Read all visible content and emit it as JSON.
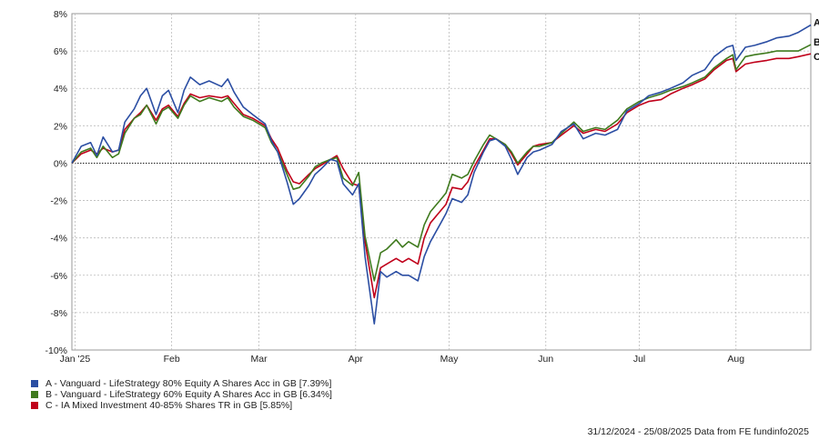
{
  "chart_data": {
    "type": "line",
    "title": "",
    "xlabel": "",
    "ylabel": "",
    "ylim": [
      -10,
      8
    ],
    "yticks": [
      -10,
      -8,
      -6,
      -4,
      -2,
      0,
      2,
      4,
      6,
      8
    ],
    "ytick_labels": [
      "-10%",
      "-8%",
      "-6%",
      "-4%",
      "-2%",
      "0%",
      "2%",
      "4%",
      "6%",
      "8%"
    ],
    "xlim": [
      "2024-12-31",
      "2025-08-25"
    ],
    "xtick_labels": [
      "Jan '25",
      "Feb",
      "Mar",
      "Apr",
      "May",
      "Jun",
      "Jul",
      "Aug"
    ],
    "xtick_dates": [
      "2025-01-01",
      "2025-02-01",
      "2025-03-01",
      "2025-04-01",
      "2025-05-01",
      "2025-06-01",
      "2025-07-01",
      "2025-08-01"
    ],
    "grid": true,
    "legend_position": "bottom-left",
    "series": [
      {
        "name": "A - Vanguard - LifeStrategy 80% Equity A Shares Acc in GB [7.39%]",
        "end_label": "A",
        "color": "#2b4ea3",
        "points": [
          [
            "2024-12-31",
            0.0
          ],
          [
            "2025-01-03",
            0.9
          ],
          [
            "2025-01-06",
            1.1
          ],
          [
            "2025-01-08",
            0.4
          ],
          [
            "2025-01-10",
            1.4
          ],
          [
            "2025-01-13",
            0.6
          ],
          [
            "2025-01-15",
            0.7
          ],
          [
            "2025-01-17",
            2.2
          ],
          [
            "2025-01-20",
            2.9
          ],
          [
            "2025-01-22",
            3.6
          ],
          [
            "2025-01-24",
            4.0
          ],
          [
            "2025-01-27",
            2.6
          ],
          [
            "2025-01-29",
            3.6
          ],
          [
            "2025-01-31",
            3.9
          ],
          [
            "2025-02-03",
            2.7
          ],
          [
            "2025-02-05",
            3.9
          ],
          [
            "2025-02-07",
            4.6
          ],
          [
            "2025-02-10",
            4.2
          ],
          [
            "2025-02-13",
            4.4
          ],
          [
            "2025-02-17",
            4.1
          ],
          [
            "2025-02-19",
            4.5
          ],
          [
            "2025-02-21",
            3.8
          ],
          [
            "2025-02-24",
            3.0
          ],
          [
            "2025-02-27",
            2.6
          ],
          [
            "2025-03-03",
            2.1
          ],
          [
            "2025-03-05",
            1.2
          ],
          [
            "2025-03-07",
            0.6
          ],
          [
            "2025-03-10",
            -1.0
          ],
          [
            "2025-03-12",
            -2.2
          ],
          [
            "2025-03-14",
            -1.9
          ],
          [
            "2025-03-17",
            -1.2
          ],
          [
            "2025-03-19",
            -0.6
          ],
          [
            "2025-03-21",
            -0.3
          ],
          [
            "2025-03-24",
            0.2
          ],
          [
            "2025-03-26",
            0.1
          ],
          [
            "2025-03-28",
            -1.1
          ],
          [
            "2025-03-31",
            -1.7
          ],
          [
            "2025-04-02",
            -1.1
          ],
          [
            "2025-04-04",
            -5.0
          ],
          [
            "2025-04-07",
            -8.6
          ],
          [
            "2025-04-09",
            -5.8
          ],
          [
            "2025-04-11",
            -6.1
          ],
          [
            "2025-04-14",
            -5.8
          ],
          [
            "2025-04-16",
            -6.0
          ],
          [
            "2025-04-18",
            -6.0
          ],
          [
            "2025-04-21",
            -6.3
          ],
          [
            "2025-04-23",
            -5.0
          ],
          [
            "2025-04-25",
            -4.2
          ],
          [
            "2025-04-28",
            -3.3
          ],
          [
            "2025-04-30",
            -2.7
          ],
          [
            "2025-05-02",
            -1.9
          ],
          [
            "2025-05-05",
            -2.1
          ],
          [
            "2025-05-07",
            -1.7
          ],
          [
            "2025-05-09",
            -0.5
          ],
          [
            "2025-05-12",
            0.6
          ],
          [
            "2025-05-14",
            1.2
          ],
          [
            "2025-05-16",
            1.3
          ],
          [
            "2025-05-19",
            0.9
          ],
          [
            "2025-05-21",
            0.2
          ],
          [
            "2025-05-23",
            -0.6
          ],
          [
            "2025-05-26",
            0.3
          ],
          [
            "2025-05-28",
            0.6
          ],
          [
            "2025-05-30",
            0.7
          ],
          [
            "2025-06-03",
            1.0
          ],
          [
            "2025-06-06",
            1.7
          ],
          [
            "2025-06-10",
            2.1
          ],
          [
            "2025-06-13",
            1.3
          ],
          [
            "2025-06-17",
            1.6
          ],
          [
            "2025-06-20",
            1.5
          ],
          [
            "2025-06-24",
            1.8
          ],
          [
            "2025-06-27",
            2.8
          ],
          [
            "2025-07-01",
            3.2
          ],
          [
            "2025-07-04",
            3.6
          ],
          [
            "2025-07-08",
            3.8
          ],
          [
            "2025-07-11",
            4.0
          ],
          [
            "2025-07-15",
            4.3
          ],
          [
            "2025-07-18",
            4.7
          ],
          [
            "2025-07-22",
            5.0
          ],
          [
            "2025-07-25",
            5.7
          ],
          [
            "2025-07-29",
            6.2
          ],
          [
            "2025-07-31",
            6.3
          ],
          [
            "2025-08-01",
            5.5
          ],
          [
            "2025-08-04",
            6.2
          ],
          [
            "2025-08-07",
            6.3
          ],
          [
            "2025-08-11",
            6.5
          ],
          [
            "2025-08-14",
            6.7
          ],
          [
            "2025-08-18",
            6.8
          ],
          [
            "2025-08-21",
            7.0
          ],
          [
            "2025-08-25",
            7.39
          ]
        ]
      },
      {
        "name": "B - Vanguard - LifeStrategy 60% Equity A Shares Acc in GB [6.34%]",
        "end_label": "B",
        "color": "#3f7a1e",
        "points": [
          [
            "2024-12-31",
            0.0
          ],
          [
            "2025-01-03",
            0.6
          ],
          [
            "2025-01-06",
            0.8
          ],
          [
            "2025-01-08",
            0.3
          ],
          [
            "2025-01-10",
            0.9
          ],
          [
            "2025-01-13",
            0.3
          ],
          [
            "2025-01-15",
            0.5
          ],
          [
            "2025-01-17",
            1.6
          ],
          [
            "2025-01-20",
            2.4
          ],
          [
            "2025-01-22",
            2.6
          ],
          [
            "2025-01-24",
            3.1
          ],
          [
            "2025-01-27",
            2.1
          ],
          [
            "2025-01-29",
            2.8
          ],
          [
            "2025-01-31",
            3.0
          ],
          [
            "2025-02-03",
            2.4
          ],
          [
            "2025-02-05",
            3.1
          ],
          [
            "2025-02-07",
            3.6
          ],
          [
            "2025-02-10",
            3.3
          ],
          [
            "2025-02-13",
            3.5
          ],
          [
            "2025-02-17",
            3.3
          ],
          [
            "2025-02-19",
            3.5
          ],
          [
            "2025-02-21",
            3.0
          ],
          [
            "2025-02-24",
            2.5
          ],
          [
            "2025-02-27",
            2.3
          ],
          [
            "2025-03-03",
            1.9
          ],
          [
            "2025-03-05",
            1.1
          ],
          [
            "2025-03-07",
            0.6
          ],
          [
            "2025-03-10",
            -0.6
          ],
          [
            "2025-03-12",
            -1.4
          ],
          [
            "2025-03-14",
            -1.3
          ],
          [
            "2025-03-17",
            -0.7
          ],
          [
            "2025-03-19",
            -0.2
          ],
          [
            "2025-03-21",
            0.0
          ],
          [
            "2025-03-24",
            0.2
          ],
          [
            "2025-03-26",
            0.3
          ],
          [
            "2025-03-28",
            -0.8
          ],
          [
            "2025-03-31",
            -1.2
          ],
          [
            "2025-04-02",
            -0.5
          ],
          [
            "2025-04-04",
            -3.9
          ],
          [
            "2025-04-07",
            -6.3
          ],
          [
            "2025-04-09",
            -4.8
          ],
          [
            "2025-04-11",
            -4.6
          ],
          [
            "2025-04-14",
            -4.1
          ],
          [
            "2025-04-16",
            -4.5
          ],
          [
            "2025-04-18",
            -4.2
          ],
          [
            "2025-04-21",
            -4.5
          ],
          [
            "2025-04-23",
            -3.3
          ],
          [
            "2025-04-25",
            -2.6
          ],
          [
            "2025-04-28",
            -2.0
          ],
          [
            "2025-04-30",
            -1.6
          ],
          [
            "2025-05-02",
            -0.6
          ],
          [
            "2025-05-05",
            -0.8
          ],
          [
            "2025-05-07",
            -0.6
          ],
          [
            "2025-05-09",
            0.1
          ],
          [
            "2025-05-12",
            1.0
          ],
          [
            "2025-05-14",
            1.5
          ],
          [
            "2025-05-16",
            1.3
          ],
          [
            "2025-05-19",
            1.0
          ],
          [
            "2025-05-21",
            0.6
          ],
          [
            "2025-05-23",
            0.0
          ],
          [
            "2025-05-26",
            0.6
          ],
          [
            "2025-05-28",
            0.9
          ],
          [
            "2025-05-30",
            0.9
          ],
          [
            "2025-06-03",
            1.1
          ],
          [
            "2025-06-06",
            1.6
          ],
          [
            "2025-06-10",
            2.2
          ],
          [
            "2025-06-13",
            1.7
          ],
          [
            "2025-06-17",
            1.9
          ],
          [
            "2025-06-20",
            1.8
          ],
          [
            "2025-06-24",
            2.3
          ],
          [
            "2025-06-27",
            2.9
          ],
          [
            "2025-07-01",
            3.3
          ],
          [
            "2025-07-04",
            3.5
          ],
          [
            "2025-07-08",
            3.7
          ],
          [
            "2025-07-11",
            3.9
          ],
          [
            "2025-07-15",
            4.1
          ],
          [
            "2025-07-18",
            4.3
          ],
          [
            "2025-07-22",
            4.6
          ],
          [
            "2025-07-25",
            5.1
          ],
          [
            "2025-07-29",
            5.6
          ],
          [
            "2025-07-31",
            5.8
          ],
          [
            "2025-08-01",
            5.0
          ],
          [
            "2025-08-04",
            5.7
          ],
          [
            "2025-08-07",
            5.8
          ],
          [
            "2025-08-11",
            5.9
          ],
          [
            "2025-08-14",
            6.0
          ],
          [
            "2025-08-18",
            6.0
          ],
          [
            "2025-08-21",
            6.0
          ],
          [
            "2025-08-25",
            6.34
          ]
        ]
      },
      {
        "name": "C - IA Mixed Investment 40-85% Shares TR in GB [5.85%]",
        "end_label": "C",
        "color": "#c0001a",
        "points": [
          [
            "2024-12-31",
            0.0
          ],
          [
            "2025-01-03",
            0.5
          ],
          [
            "2025-01-06",
            0.7
          ],
          [
            "2025-01-08",
            0.5
          ],
          [
            "2025-01-10",
            0.8
          ],
          [
            "2025-01-13",
            0.6
          ],
          [
            "2025-01-15",
            0.7
          ],
          [
            "2025-01-17",
            1.8
          ],
          [
            "2025-01-20",
            2.4
          ],
          [
            "2025-01-22",
            2.7
          ],
          [
            "2025-01-24",
            3.1
          ],
          [
            "2025-01-27",
            2.3
          ],
          [
            "2025-01-29",
            2.9
          ],
          [
            "2025-01-31",
            3.1
          ],
          [
            "2025-02-03",
            2.5
          ],
          [
            "2025-02-05",
            3.2
          ],
          [
            "2025-02-07",
            3.7
          ],
          [
            "2025-02-10",
            3.5
          ],
          [
            "2025-02-13",
            3.6
          ],
          [
            "2025-02-17",
            3.5
          ],
          [
            "2025-02-19",
            3.6
          ],
          [
            "2025-02-21",
            3.2
          ],
          [
            "2025-02-24",
            2.6
          ],
          [
            "2025-02-27",
            2.4
          ],
          [
            "2025-03-03",
            2.0
          ],
          [
            "2025-03-05",
            1.3
          ],
          [
            "2025-03-07",
            0.8
          ],
          [
            "2025-03-10",
            -0.4
          ],
          [
            "2025-03-12",
            -1.0
          ],
          [
            "2025-03-14",
            -1.1
          ],
          [
            "2025-03-17",
            -0.6
          ],
          [
            "2025-03-19",
            -0.3
          ],
          [
            "2025-03-21",
            -0.1
          ],
          [
            "2025-03-24",
            0.2
          ],
          [
            "2025-03-26",
            0.4
          ],
          [
            "2025-03-28",
            -0.3
          ],
          [
            "2025-03-31",
            -1.1
          ],
          [
            "2025-04-02",
            -1.2
          ],
          [
            "2025-04-04",
            -4.2
          ],
          [
            "2025-04-07",
            -7.2
          ],
          [
            "2025-04-09",
            -5.6
          ],
          [
            "2025-04-11",
            -5.4
          ],
          [
            "2025-04-14",
            -5.1
          ],
          [
            "2025-04-16",
            -5.3
          ],
          [
            "2025-04-18",
            -5.1
          ],
          [
            "2025-04-21",
            -5.4
          ],
          [
            "2025-04-23",
            -4.0
          ],
          [
            "2025-04-25",
            -3.2
          ],
          [
            "2025-04-28",
            -2.6
          ],
          [
            "2025-04-30",
            -2.2
          ],
          [
            "2025-05-02",
            -1.3
          ],
          [
            "2025-05-05",
            -1.4
          ],
          [
            "2025-05-07",
            -1.0
          ],
          [
            "2025-05-09",
            -0.2
          ],
          [
            "2025-05-12",
            0.7
          ],
          [
            "2025-05-14",
            1.3
          ],
          [
            "2025-05-16",
            1.3
          ],
          [
            "2025-05-19",
            1.0
          ],
          [
            "2025-05-21",
            0.5
          ],
          [
            "2025-05-23",
            -0.1
          ],
          [
            "2025-05-26",
            0.5
          ],
          [
            "2025-05-28",
            0.9
          ],
          [
            "2025-05-30",
            1.0
          ],
          [
            "2025-06-03",
            1.1
          ],
          [
            "2025-06-06",
            1.5
          ],
          [
            "2025-06-10",
            2.0
          ],
          [
            "2025-06-13",
            1.6
          ],
          [
            "2025-06-17",
            1.8
          ],
          [
            "2025-06-20",
            1.7
          ],
          [
            "2025-06-24",
            2.1
          ],
          [
            "2025-06-27",
            2.7
          ],
          [
            "2025-07-01",
            3.1
          ],
          [
            "2025-07-04",
            3.3
          ],
          [
            "2025-07-08",
            3.4
          ],
          [
            "2025-07-11",
            3.7
          ],
          [
            "2025-07-15",
            4.0
          ],
          [
            "2025-07-18",
            4.2
          ],
          [
            "2025-07-22",
            4.5
          ],
          [
            "2025-07-25",
            5.0
          ],
          [
            "2025-07-29",
            5.5
          ],
          [
            "2025-07-31",
            5.6
          ],
          [
            "2025-08-01",
            4.9
          ],
          [
            "2025-08-04",
            5.3
          ],
          [
            "2025-08-07",
            5.4
          ],
          [
            "2025-08-11",
            5.5
          ],
          [
            "2025-08-14",
            5.6
          ],
          [
            "2025-08-18",
            5.6
          ],
          [
            "2025-08-21",
            5.7
          ],
          [
            "2025-08-25",
            5.85
          ]
        ]
      }
    ]
  },
  "footer": "31/12/2024 - 25/08/2025 Data from FE fundinfo2025"
}
